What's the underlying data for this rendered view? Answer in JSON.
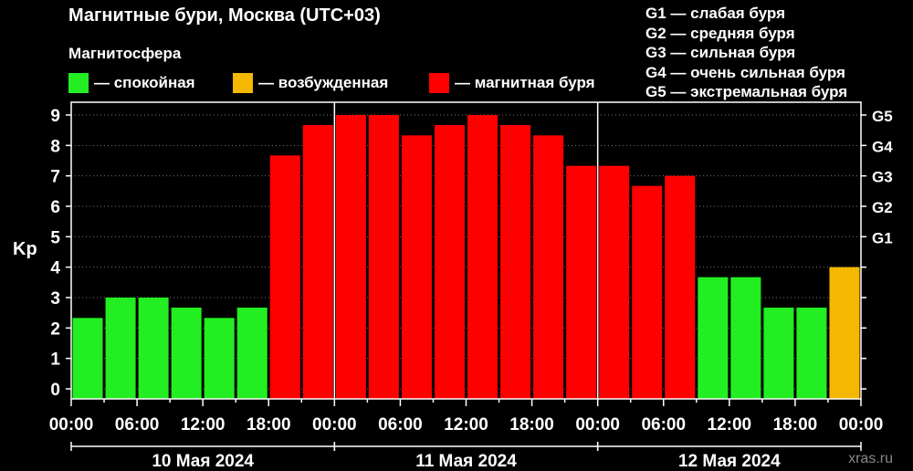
{
  "chart_data": {
    "type": "bar",
    "title": "Магнитные бури, Москва (UTC+03)",
    "subtitle": "Магнитосфера",
    "ylabel": "Kp",
    "ylim": [
      0,
      9
    ],
    "y_ticks": [
      "0",
      "1",
      "2",
      "3",
      "4",
      "5",
      "6",
      "7",
      "8",
      "9"
    ],
    "g_ticks": [
      {
        "label": "G1",
        "value": 5
      },
      {
        "label": "G2",
        "value": 6
      },
      {
        "label": "G3",
        "value": 7
      },
      {
        "label": "G4",
        "value": 8
      },
      {
        "label": "G5",
        "value": 9
      }
    ],
    "x_tick_labels": [
      "00:00",
      "06:00",
      "12:00",
      "18:00",
      "00:00",
      "06:00",
      "12:00",
      "18:00",
      "00:00",
      "06:00",
      "12:00",
      "18:00",
      "00:00"
    ],
    "days": [
      "10 Мая 2024",
      "11 Мая 2024",
      "12 Мая 2024"
    ],
    "values": [
      2.33,
      3.0,
      3.0,
      2.67,
      2.33,
      2.67,
      7.67,
      8.67,
      9.0,
      9.0,
      8.33,
      8.67,
      9.0,
      8.67,
      8.33,
      7.33,
      7.33,
      6.67,
      7.0,
      3.67,
      3.67,
      2.67,
      2.67,
      4.0
    ],
    "status": [
      "calm",
      "calm",
      "calm",
      "calm",
      "calm",
      "calm",
      "storm",
      "storm",
      "storm",
      "storm",
      "storm",
      "storm",
      "storm",
      "storm",
      "storm",
      "storm",
      "storm",
      "storm",
      "storm",
      "calm",
      "calm",
      "calm",
      "calm",
      "excited"
    ],
    "legend": [
      {
        "key": "calm",
        "label": "— спокойная",
        "color": "#22ee22"
      },
      {
        "key": "excited",
        "label": "— возбужденная",
        "color": "#f5b800"
      },
      {
        "key": "storm",
        "label": "— магнитная буря",
        "color": "#ff0000"
      }
    ],
    "g_legend": [
      "G1 — слабая буря",
      "G2 — средняя буря",
      "G3 — сильная буря",
      "G4 — очень сильная буря",
      "G5 — экстремальная буря"
    ],
    "grid": true,
    "legend_position": "top"
  },
  "watermark": "xras.ru"
}
